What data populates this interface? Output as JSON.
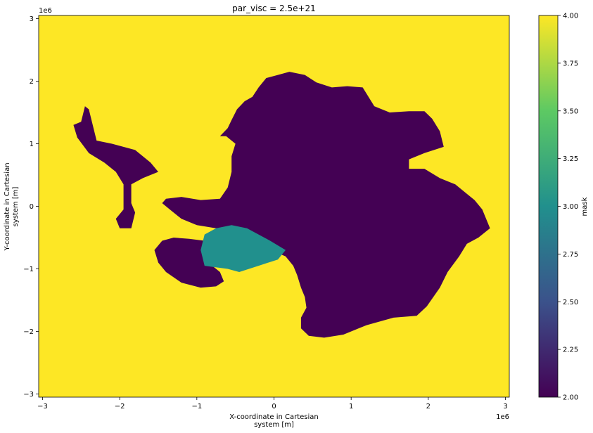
{
  "chart_data": {
    "type": "heatmap",
    "title": "par_visc = 2.5e+21",
    "xlabel_line1": "X-coordinate in Cartesian",
    "xlabel_line2": "system [m]",
    "ylabel_line1": "Y-coordinate in Cartesian",
    "ylabel_line2": "system [m]",
    "x_offset_label": "1e6",
    "y_offset_label": "1e6",
    "xlim": [
      -3.05,
      3.05
    ],
    "ylim": [
      -3.05,
      3.05
    ],
    "xticks": [
      -3,
      -2,
      -1,
      0,
      1,
      2,
      3
    ],
    "yticks": [
      -3,
      -2,
      -1,
      0,
      1,
      2,
      3
    ],
    "xtick_labels": [
      "−3",
      "−2",
      "−1",
      "0",
      "1",
      "2",
      "3"
    ],
    "ytick_labels": [
      "−3",
      "−2",
      "−1",
      "0",
      "1",
      "2",
      "3"
    ],
    "colorbar": {
      "label": "mask",
      "range": [
        2.0,
        4.0
      ],
      "ticks": [
        2.0,
        2.25,
        2.5,
        2.75,
        3.0,
        3.25,
        3.5,
        3.75,
        4.0
      ],
      "tick_labels": [
        "2.00",
        "2.25",
        "2.50",
        "2.75",
        "3.00",
        "3.25",
        "3.50",
        "3.75",
        "4.00"
      ],
      "colormap": "viridis",
      "colors": [
        "#440154",
        "#3b528b",
        "#21908d",
        "#5dc963",
        "#fde725"
      ]
    },
    "mask_classes": [
      {
        "value": 4,
        "color": "#fde725"
      },
      {
        "value": 3,
        "color": "#21908d"
      },
      {
        "value": 2,
        "color": "#440154"
      }
    ],
    "regions": {
      "ocean_value": 4,
      "grounded_ice": {
        "value": 2,
        "polygons": [
          [
            [
              -0.48,
              1.55
            ],
            [
              -0.38,
              1.68
            ],
            [
              -0.28,
              1.75
            ],
            [
              -0.2,
              1.9
            ],
            [
              -0.1,
              2.05
            ],
            [
              0.05,
              2.1
            ],
            [
              0.2,
              2.15
            ],
            [
              0.4,
              2.1
            ],
            [
              0.55,
              1.98
            ],
            [
              0.75,
              1.9
            ],
            [
              0.95,
              1.92
            ],
            [
              1.15,
              1.9
            ],
            [
              1.3,
              1.6
            ],
            [
              1.5,
              1.5
            ],
            [
              1.75,
              1.52
            ],
            [
              1.95,
              1.52
            ],
            [
              2.05,
              1.4
            ],
            [
              2.15,
              1.2
            ],
            [
              2.2,
              0.95
            ],
            [
              1.95,
              0.85
            ],
            [
              1.75,
              0.75
            ],
            [
              1.75,
              0.6
            ],
            [
              1.95,
              0.6
            ],
            [
              2.15,
              0.45
            ],
            [
              2.35,
              0.35
            ],
            [
              2.5,
              0.2
            ],
            [
              2.6,
              0.1
            ],
            [
              2.7,
              -0.05
            ],
            [
              2.8,
              -0.35
            ],
            [
              2.65,
              -0.5
            ],
            [
              2.5,
              -0.6
            ],
            [
              2.4,
              -0.8
            ],
            [
              2.25,
              -1.05
            ],
            [
              2.15,
              -1.3
            ],
            [
              1.98,
              -1.6
            ],
            [
              1.85,
              -1.75
            ],
            [
              1.55,
              -1.78
            ],
            [
              1.2,
              -1.9
            ],
            [
              0.9,
              -2.05
            ],
            [
              0.65,
              -2.1
            ],
            [
              0.45,
              -2.07
            ],
            [
              0.35,
              -1.95
            ],
            [
              0.35,
              -1.78
            ],
            [
              0.42,
              -1.62
            ],
            [
              0.4,
              -1.45
            ],
            [
              0.35,
              -1.3
            ],
            [
              0.3,
              -1.1
            ],
            [
              0.25,
              -0.95
            ],
            [
              0.15,
              -0.8
            ],
            [
              0.0,
              -0.72
            ],
            [
              -0.1,
              -0.7
            ],
            [
              -0.3,
              -0.4
            ],
            [
              -0.55,
              -0.35
            ],
            [
              -0.75,
              -0.35
            ],
            [
              -1.0,
              -0.3
            ],
            [
              -1.2,
              -0.2
            ],
            [
              -1.35,
              -0.05
            ],
            [
              -1.45,
              0.05
            ],
            [
              -1.4,
              0.12
            ],
            [
              -1.2,
              0.15
            ],
            [
              -0.95,
              0.1
            ],
            [
              -0.7,
              0.12
            ],
            [
              -0.6,
              0.3
            ],
            [
              -0.55,
              0.55
            ],
            [
              -0.55,
              0.8
            ],
            [
              -0.5,
              1.0
            ],
            [
              -0.62,
              1.12
            ],
            [
              -0.7,
              1.12
            ],
            [
              -0.6,
              1.25
            ],
            [
              -0.55,
              1.38
            ]
          ],
          [
            [
              -1.45,
              -0.55
            ],
            [
              -1.3,
              -0.5
            ],
            [
              -1.1,
              -0.52
            ],
            [
              -0.9,
              -0.55
            ],
            [
              -0.85,
              -0.75
            ],
            [
              -0.8,
              -0.95
            ],
            [
              -0.7,
              -1.05
            ],
            [
              -0.65,
              -1.2
            ],
            [
              -0.75,
              -1.28
            ],
            [
              -0.95,
              -1.3
            ],
            [
              -1.2,
              -1.22
            ],
            [
              -1.4,
              -1.05
            ],
            [
              -1.5,
              -0.9
            ],
            [
              -1.55,
              -0.7
            ]
          ],
          [
            [
              -2.5,
              1.35
            ],
            [
              -2.45,
              1.6
            ],
            [
              -2.4,
              1.55
            ],
            [
              -2.35,
              1.3
            ],
            [
              -2.3,
              1.05
            ],
            [
              -2.1,
              1.0
            ],
            [
              -1.8,
              0.9
            ],
            [
              -1.6,
              0.7
            ],
            [
              -1.5,
              0.55
            ],
            [
              -1.7,
              0.45
            ],
            [
              -1.85,
              0.35
            ],
            [
              -1.85,
              0.05
            ],
            [
              -1.8,
              -0.1
            ],
            [
              -1.85,
              -0.35
            ],
            [
              -2.0,
              -0.35
            ],
            [
              -2.05,
              -0.2
            ],
            [
              -1.95,
              -0.05
            ],
            [
              -1.95,
              0.35
            ],
            [
              -2.05,
              0.55
            ],
            [
              -2.2,
              0.7
            ],
            [
              -2.4,
              0.85
            ],
            [
              -2.55,
              1.1
            ],
            [
              -2.6,
              1.3
            ]
          ]
        ]
      },
      "floating_ice": {
        "value": 3,
        "polygons": [
          [
            [
              -0.9,
              -0.45
            ],
            [
              -0.75,
              -0.35
            ],
            [
              -0.55,
              -0.3
            ],
            [
              -0.35,
              -0.35
            ],
            [
              -0.2,
              -0.45
            ],
            [
              -0.05,
              -0.55
            ],
            [
              0.15,
              -0.7
            ],
            [
              0.05,
              -0.85
            ],
            [
              -0.2,
              -0.95
            ],
            [
              -0.45,
              -1.05
            ],
            [
              -0.6,
              -1.0
            ],
            [
              -0.9,
              -0.95
            ],
            [
              -0.95,
              -0.7
            ]
          ]
        ]
      }
    }
  }
}
